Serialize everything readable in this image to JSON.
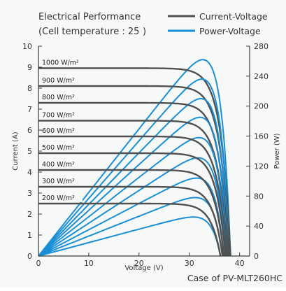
{
  "chart_data": {
    "type": "line",
    "title_line1": "Electrical Performance",
    "title_line2": "(Cell temperature : 25",
    "title_line2_end": ")",
    "xlabel": "Voltage (V)",
    "ylabel_left": "Current (A)",
    "ylabel_right": "Power (W)",
    "footer": "Case of PV-MLT260HC",
    "xlim": [
      0,
      42
    ],
    "ylim_left": [
      0,
      10
    ],
    "ylim_right": [
      0,
      280
    ],
    "x_ticks": [
      "0",
      "10",
      "20",
      "30",
      "40"
    ],
    "y_left_ticks": [
      "0",
      "1",
      "2",
      "3",
      "4",
      "5",
      "6",
      "7",
      "8",
      "9",
      "10"
    ],
    "y_right_ticks": [
      "0",
      "40",
      "80",
      "120",
      "160",
      "200",
      "240",
      "280"
    ],
    "grid": false,
    "legend_position": "top-right",
    "legend": [
      {
        "label": "Current-Voltage",
        "color": "#505050"
      },
      {
        "label": "Power-Voltage",
        "color": "#1a8fd5"
      }
    ],
    "colors": {
      "iv": "#505050",
      "pv": "#1a8fd5",
      "axis": "#3a3a3a",
      "background": "#f7f8f8"
    },
    "series": [
      {
        "irradiance": "1000 W/m²",
        "isc": 8.95,
        "voc": 38.2,
        "vmp": 31.5,
        "pmax": 262
      },
      {
        "irradiance": "900 W/m²",
        "isc": 8.1,
        "voc": 38.0,
        "vmp": 31.4,
        "pmax": 236
      },
      {
        "irradiance": "800 W/m²",
        "isc": 7.3,
        "voc": 37.8,
        "vmp": 31.3,
        "pmax": 210
      },
      {
        "irradiance": "700 W/m²",
        "isc": 6.45,
        "voc": 37.6,
        "vmp": 31.2,
        "pmax": 185
      },
      {
        "irradiance": "600 W/m²",
        "isc": 5.7,
        "voc": 37.4,
        "vmp": 31.0,
        "pmax": 158
      },
      {
        "irradiance": "500 W/m²",
        "isc": 4.9,
        "voc": 37.2,
        "vmp": 30.8,
        "pmax": 131
      },
      {
        "irradiance": "400 W/m²",
        "isc": 4.1,
        "voc": 36.9,
        "vmp": 30.6,
        "pmax": 104
      },
      {
        "irradiance": "300 W/m²",
        "isc": 3.3,
        "voc": 36.6,
        "vmp": 30.4,
        "pmax": 78
      },
      {
        "irradiance": "200 W/m²",
        "isc": 2.5,
        "voc": 36.2,
        "vmp": 30.1,
        "pmax": 52
      }
    ]
  }
}
